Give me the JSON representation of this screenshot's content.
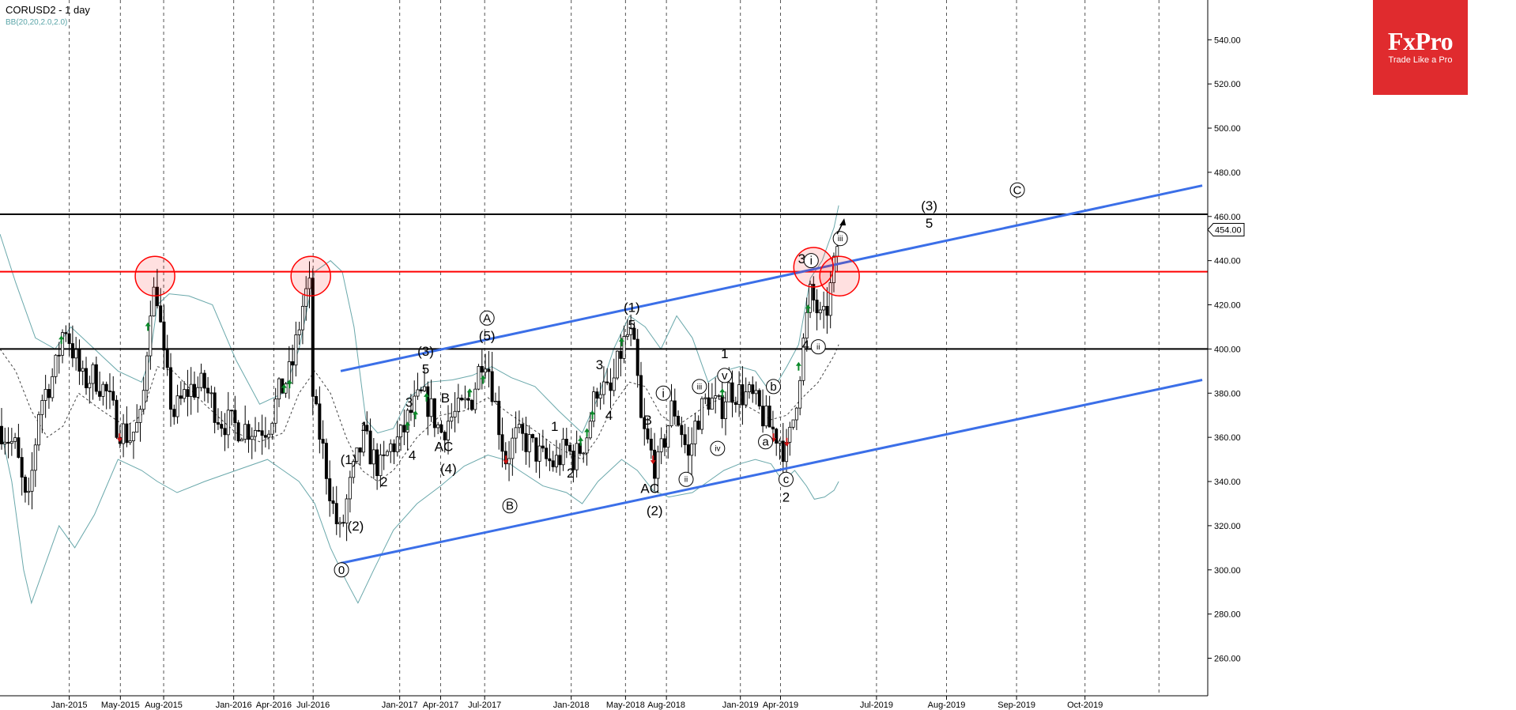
{
  "header": {
    "title": "CORUSD2 - 1 day",
    "indicator": "BB(20,20,2.0,2.0)"
  },
  "logo": {
    "brand": "FxPro",
    "slogan": "Trade Like a Pro",
    "color": "#e02b2e"
  },
  "chart_data": {
    "type": "candlestick",
    "grid": true,
    "y_axis": {
      "min": 243,
      "max": 558,
      "ticks": [
        260,
        280,
        300,
        320,
        340,
        360,
        380,
        400,
        420,
        440,
        460,
        480,
        500,
        520,
        540
      ],
      "tick_labels": [
        "260.00",
        "280.00",
        "300.00",
        "320.00",
        "340.00",
        "360.00",
        "380.00",
        "400.00",
        "420.00",
        "440.00",
        "460.00",
        "480.00",
        "500.00",
        "520.00",
        "540.00"
      ]
    },
    "x_axis": {
      "min": 0,
      "max": 1535,
      "labels": [
        {
          "text": "Jan-2015",
          "x": 88
        },
        {
          "text": "May-2015",
          "x": 153
        },
        {
          "text": "Aug-2015",
          "x": 208
        },
        {
          "text": "Jan-2016",
          "x": 297
        },
        {
          "text": "Apr-2016",
          "x": 348
        },
        {
          "text": "Jul-2016",
          "x": 398
        },
        {
          "text": "Jan-2017",
          "x": 508
        },
        {
          "text": "Apr-2017",
          "x": 560
        },
        {
          "text": "Jul-2017",
          "x": 616
        },
        {
          "text": "Jan-2018",
          "x": 726
        },
        {
          "text": "May-2018",
          "x": 795
        },
        {
          "text": "Aug-2018",
          "x": 847
        },
        {
          "text": "Jan-2019",
          "x": 941
        },
        {
          "text": "Apr-2019",
          "x": 992
        },
        {
          "text": "Jul-2019",
          "x": 1114
        },
        {
          "text": "Aug-2019",
          "x": 1203
        },
        {
          "text": "Sep-2019",
          "x": 1292
        },
        {
          "text": "Oct-2019",
          "x": 1379
        }
      ],
      "extra_gridlines": [
        1473
      ]
    },
    "price_label": "454.00",
    "last_price": 454,
    "horizontal_lines": [
      {
        "value": 461,
        "color": "#000000"
      },
      {
        "value": 435,
        "color": "#ff0000"
      },
      {
        "value": 400,
        "color": "#000000"
      }
    ],
    "trend_lines": [
      {
        "x1": 433,
        "y1": 390,
        "x2": 1528,
        "y2": 474,
        "color": "#3b6fe8"
      },
      {
        "x1": 433,
        "y1": 303,
        "x2": 1528,
        "y2": 386,
        "color": "#3b6fe8"
      }
    ],
    "highlight_circles": [
      {
        "x": 197,
        "y": 433
      },
      {
        "x": 395,
        "y": 433
      },
      {
        "x": 1034,
        "y": 437
      },
      {
        "x": 1067,
        "y": 433
      }
    ],
    "bollinger": {
      "upper": [
        [
          0,
          452
        ],
        [
          20,
          430
        ],
        [
          45,
          405
        ],
        [
          70,
          400
        ],
        [
          90,
          410
        ],
        [
          120,
          400
        ],
        [
          150,
          390
        ],
        [
          180,
          385
        ],
        [
          190,
          395
        ],
        [
          200,
          420
        ],
        [
          215,
          425
        ],
        [
          240,
          424
        ],
        [
          270,
          420
        ],
        [
          300,
          395
        ],
        [
          330,
          375
        ],
        [
          360,
          380
        ],
        [
          380,
          400
        ],
        [
          400,
          435
        ],
        [
          420,
          440
        ],
        [
          435,
          435
        ],
        [
          450,
          410
        ],
        [
          465,
          368
        ],
        [
          480,
          362
        ],
        [
          500,
          364
        ],
        [
          520,
          378
        ],
        [
          545,
          385
        ],
        [
          575,
          386
        ],
        [
          600,
          388
        ],
        [
          625,
          392
        ],
        [
          650,
          387
        ],
        [
          680,
          383
        ],
        [
          710,
          372
        ],
        [
          740,
          362
        ],
        [
          760,
          378
        ],
        [
          780,
          400
        ],
        [
          800,
          415
        ],
        [
          820,
          410
        ],
        [
          840,
          400
        ],
        [
          860,
          415
        ],
        [
          880,
          405
        ],
        [
          900,
          385
        ],
        [
          920,
          390
        ],
        [
          940,
          392
        ],
        [
          960,
          390
        ],
        [
          980,
          380
        ],
        [
          1000,
          392
        ],
        [
          1015,
          402
        ],
        [
          1030,
          432
        ],
        [
          1045,
          440
        ],
        [
          1060,
          455
        ],
        [
          1066,
          465
        ]
      ],
      "middle": [
        [
          0,
          400
        ],
        [
          20,
          390
        ],
        [
          40,
          372
        ],
        [
          60,
          360
        ],
        [
          80,
          365
        ],
        [
          100,
          380
        ],
        [
          130,
          372
        ],
        [
          160,
          365
        ],
        [
          180,
          370
        ],
        [
          200,
          392
        ],
        [
          220,
          390
        ],
        [
          260,
          375
        ],
        [
          300,
          362
        ],
        [
          330,
          358
        ],
        [
          360,
          362
        ],
        [
          380,
          380
        ],
        [
          400,
          390
        ],
        [
          420,
          380
        ],
        [
          440,
          360
        ],
        [
          460,
          345
        ],
        [
          480,
          340
        ],
        [
          500,
          345
        ],
        [
          530,
          360
        ],
        [
          560,
          370
        ],
        [
          590,
          372
        ],
        [
          620,
          378
        ],
        [
          650,
          370
        ],
        [
          680,
          363
        ],
        [
          710,
          355
        ],
        [
          740,
          350
        ],
        [
          760,
          360
        ],
        [
          780,
          375
        ],
        [
          800,
          385
        ],
        [
          820,
          383
        ],
        [
          840,
          370
        ],
        [
          860,
          365
        ],
        [
          880,
          370
        ],
        [
          900,
          375
        ],
        [
          920,
          378
        ],
        [
          940,
          376
        ],
        [
          960,
          372
        ],
        [
          980,
          368
        ],
        [
          1000,
          370
        ],
        [
          1020,
          378
        ],
        [
          1040,
          385
        ],
        [
          1060,
          397
        ],
        [
          1066,
          402
        ]
      ],
      "lower": [
        [
          0,
          365
        ],
        [
          15,
          340
        ],
        [
          30,
          300
        ],
        [
          40,
          285
        ],
        [
          55,
          300
        ],
        [
          75,
          320
        ],
        [
          95,
          310
        ],
        [
          120,
          325
        ],
        [
          150,
          350
        ],
        [
          180,
          345
        ],
        [
          200,
          340
        ],
        [
          225,
          335
        ],
        [
          260,
          340
        ],
        [
          300,
          345
        ],
        [
          340,
          350
        ],
        [
          360,
          345
        ],
        [
          380,
          340
        ],
        [
          400,
          330
        ],
        [
          420,
          310
        ],
        [
          440,
          295
        ],
        [
          455,
          285
        ],
        [
          475,
          300
        ],
        [
          500,
          318
        ],
        [
          530,
          330
        ],
        [
          560,
          338
        ],
        [
          590,
          347
        ],
        [
          620,
          352
        ],
        [
          640,
          350
        ],
        [
          660,
          345
        ],
        [
          690,
          338
        ],
        [
          720,
          335
        ],
        [
          740,
          330
        ],
        [
          760,
          340
        ],
        [
          790,
          350
        ],
        [
          810,
          345
        ],
        [
          830,
          336
        ],
        [
          850,
          333
        ],
        [
          880,
          335
        ],
        [
          900,
          340
        ],
        [
          920,
          345
        ],
        [
          940,
          348
        ],
        [
          960,
          350
        ],
        [
          980,
          348
        ],
        [
          995,
          340
        ],
        [
          1010,
          345
        ],
        [
          1025,
          338
        ],
        [
          1035,
          332
        ],
        [
          1048,
          333
        ],
        [
          1060,
          336
        ],
        [
          1066,
          340
        ]
      ]
    },
    "price_path": [
      [
        0,
        365
      ],
      [
        20,
        355
      ],
      [
        35,
        325
      ],
      [
        50,
        375
      ],
      [
        70,
        390
      ],
      [
        82,
        412
      ],
      [
        92,
        400
      ],
      [
        105,
        385
      ],
      [
        120,
        388
      ],
      [
        135,
        380
      ],
      [
        150,
        365
      ],
      [
        165,
        360
      ],
      [
        180,
        368
      ],
      [
        192,
        425
      ],
      [
        200,
        425
      ],
      [
        208,
        395
      ],
      [
        220,
        370
      ],
      [
        240,
        382
      ],
      [
        260,
        383
      ],
      [
        280,
        368
      ],
      [
        300,
        365
      ],
      [
        320,
        364
      ],
      [
        340,
        365
      ],
      [
        355,
        380
      ],
      [
        370,
        390
      ],
      [
        385,
        420
      ],
      [
        393,
        430
      ],
      [
        398,
        375
      ],
      [
        410,
        355
      ],
      [
        425,
        325
      ],
      [
        433,
        315
      ],
      [
        440,
        330
      ],
      [
        450,
        345
      ],
      [
        462,
        360
      ],
      [
        475,
        350
      ],
      [
        485,
        345
      ],
      [
        495,
        355
      ],
      [
        510,
        360
      ],
      [
        520,
        370
      ],
      [
        535,
        378
      ],
      [
        545,
        375
      ],
      [
        560,
        362
      ],
      [
        570,
        368
      ],
      [
        585,
        372
      ],
      [
        600,
        378
      ],
      [
        615,
        400
      ],
      [
        622,
        390
      ],
      [
        632,
        370
      ],
      [
        642,
        350
      ],
      [
        655,
        360
      ],
      [
        670,
        358
      ],
      [
        690,
        350
      ],
      [
        705,
        348
      ],
      [
        720,
        355
      ],
      [
        730,
        350
      ],
      [
        745,
        360
      ],
      [
        760,
        385
      ],
      [
        775,
        378
      ],
      [
        790,
        400
      ],
      [
        800,
        408
      ],
      [
        808,
        395
      ],
      [
        815,
        365
      ],
      [
        825,
        355
      ],
      [
        835,
        345
      ],
      [
        845,
        360
      ],
      [
        855,
        375
      ],
      [
        865,
        365
      ],
      [
        875,
        350
      ],
      [
        885,
        368
      ],
      [
        900,
        378
      ],
      [
        915,
        372
      ],
      [
        925,
        382
      ],
      [
        940,
        380
      ],
      [
        955,
        378
      ],
      [
        965,
        372
      ],
      [
        978,
        365
      ],
      [
        990,
        360
      ],
      [
        1000,
        352
      ],
      [
        1010,
        372
      ],
      [
        1020,
        400
      ],
      [
        1030,
        425
      ],
      [
        1038,
        418
      ],
      [
        1045,
        410
      ],
      [
        1052,
        420
      ],
      [
        1058,
        432
      ],
      [
        1066,
        452
      ]
    ],
    "signal_arrows": [
      {
        "x": 78,
        "y": 404,
        "dir": "up"
      },
      {
        "x": 188,
        "y": 410,
        "dir": "up"
      },
      {
        "x": 152,
        "y": 360,
        "dir": "down"
      },
      {
        "x": 361,
        "y": 382,
        "dir": "up"
      },
      {
        "x": 368,
        "y": 384,
        "dir": "up"
      },
      {
        "x": 518,
        "y": 365,
        "dir": "up"
      },
      {
        "x": 528,
        "y": 370,
        "dir": "up"
      },
      {
        "x": 542,
        "y": 378,
        "dir": "up"
      },
      {
        "x": 597,
        "y": 380,
        "dir": "up"
      },
      {
        "x": 614,
        "y": 386,
        "dir": "up"
      },
      {
        "x": 643,
        "y": 350,
        "dir": "down"
      },
      {
        "x": 738,
        "y": 358,
        "dir": "up"
      },
      {
        "x": 746,
        "y": 362,
        "dir": "up"
      },
      {
        "x": 753,
        "y": 370,
        "dir": "up"
      },
      {
        "x": 790,
        "y": 403,
        "dir": "up"
      },
      {
        "x": 830,
        "y": 350,
        "dir": "down"
      },
      {
        "x": 918,
        "y": 380,
        "dir": "up"
      },
      {
        "x": 983,
        "y": 360,
        "dir": "down"
      },
      {
        "x": 1000,
        "y": 358,
        "dir": "down"
      },
      {
        "x": 1015,
        "y": 392,
        "dir": "up"
      },
      {
        "x": 1027,
        "y": 418,
        "dir": "up"
      }
    ],
    "wave_labels": [
      {
        "text": "(1)",
        "x": 443,
        "y": 350
      },
      {
        "text": "(2)",
        "x": 452,
        "y": 320
      },
      {
        "text": "0",
        "x": 434,
        "y": 300,
        "circled": true
      },
      {
        "text": "1",
        "x": 463,
        "y": 365
      },
      {
        "text": "2",
        "x": 488,
        "y": 340
      },
      {
        "text": "3",
        "x": 520,
        "y": 376
      },
      {
        "text": "4",
        "x": 524,
        "y": 352
      },
      {
        "text": "(3)",
        "x": 541,
        "y": 399
      },
      {
        "text": "5",
        "x": 541,
        "y": 391
      },
      {
        "text": "B",
        "x": 566,
        "y": 378
      },
      {
        "text": "AC",
        "x": 564,
        "y": 356
      },
      {
        "text": "(4)",
        "x": 570,
        "y": 346
      },
      {
        "text": "A",
        "x": 619,
        "y": 414,
        "circled": true
      },
      {
        "text": "(5)",
        "x": 619,
        "y": 406
      },
      {
        "text": "B",
        "x": 648,
        "y": 329,
        "circled": true
      },
      {
        "text": "1",
        "x": 705,
        "y": 365
      },
      {
        "text": "2",
        "x": 725,
        "y": 344
      },
      {
        "text": "3",
        "x": 762,
        "y": 393
      },
      {
        "text": "4",
        "x": 774,
        "y": 370
      },
      {
        "text": "(1)",
        "x": 803,
        "y": 419
      },
      {
        "text": "5",
        "x": 803,
        "y": 411
      },
      {
        "text": "B",
        "x": 823,
        "y": 368
      },
      {
        "text": "AC",
        "x": 826,
        "y": 337
      },
      {
        "text": "(2)",
        "x": 832,
        "y": 327
      },
      {
        "text": "i",
        "x": 843,
        "y": 380,
        "circled": true
      },
      {
        "text": "ii",
        "x": 872,
        "y": 341,
        "circled": true
      },
      {
        "text": "iii",
        "x": 889,
        "y": 383,
        "circled": true
      },
      {
        "text": "iv",
        "x": 912,
        "y": 355,
        "circled": true
      },
      {
        "text": "1",
        "x": 921,
        "y": 398
      },
      {
        "text": "v",
        "x": 921,
        "y": 388,
        "circled": true
      },
      {
        "text": "a",
        "x": 973,
        "y": 358,
        "circled": true
      },
      {
        "text": "b",
        "x": 983,
        "y": 383,
        "circled": true
      },
      {
        "text": "c",
        "x": 999,
        "y": 341,
        "circled": true
      },
      {
        "text": "2",
        "x": 999,
        "y": 333
      },
      {
        "text": "3",
        "x": 1019,
        "y": 441
      },
      {
        "text": "i",
        "x": 1031,
        "y": 440,
        "circled": true
      },
      {
        "text": "4",
        "x": 1024,
        "y": 402
      },
      {
        "text": "ii",
        "x": 1040,
        "y": 401,
        "circled": true
      },
      {
        "text": "iii",
        "x": 1068,
        "y": 450,
        "circled": true
      },
      {
        "text": "(3)",
        "x": 1181,
        "y": 465
      },
      {
        "text": "5",
        "x": 1181,
        "y": 457
      },
      {
        "text": "C",
        "x": 1293,
        "y": 472,
        "circled": true
      }
    ],
    "target_arrow": {
      "x": 1070,
      "y": 457
    }
  }
}
